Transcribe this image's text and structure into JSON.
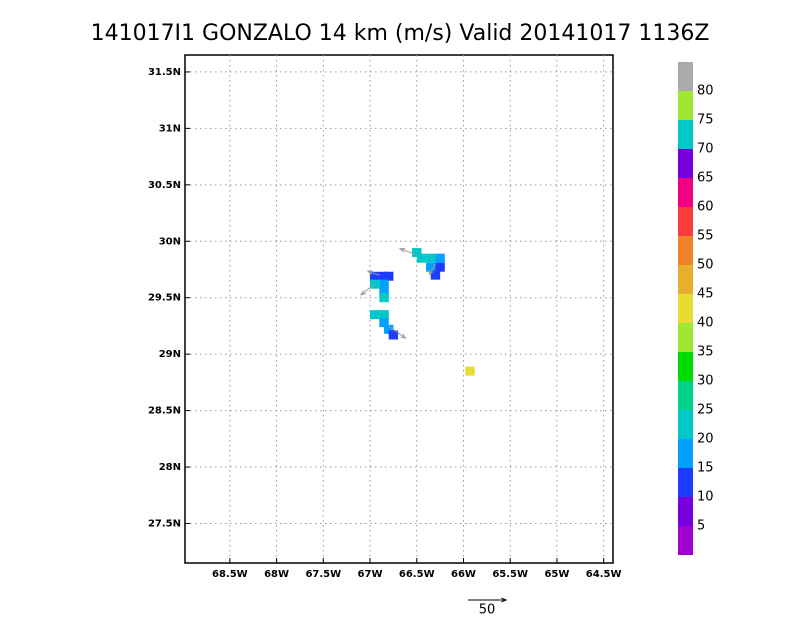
{
  "title": "141017I1 GONZALO 14 km (m/s) Valid 20141017 1136Z",
  "map": {
    "xlim": [
      -68.98,
      -64.4
    ],
    "ylim": [
      27.15,
      31.65
    ],
    "xticks": [
      {
        "value": -68.5,
        "label": "68.5W"
      },
      {
        "value": -68,
        "label": "68W"
      },
      {
        "value": -67.5,
        "label": "67.5W"
      },
      {
        "value": -67,
        "label": "67W"
      },
      {
        "value": -66.5,
        "label": "66.5W"
      },
      {
        "value": -66,
        "label": "66W"
      },
      {
        "value": -65.5,
        "label": "65.5W"
      },
      {
        "value": -65,
        "label": "65W"
      },
      {
        "value": -64.5,
        "label": "64.5W"
      }
    ],
    "yticks": [
      {
        "value": 27.5,
        "label": "27.5N"
      },
      {
        "value": 28,
        "label": "28N"
      },
      {
        "value": 28.5,
        "label": "28.5N"
      },
      {
        "value": 29,
        "label": "29N"
      },
      {
        "value": 29.5,
        "label": "29.5N"
      },
      {
        "value": 30,
        "label": "30N"
      },
      {
        "value": 30.5,
        "label": "30.5N"
      },
      {
        "value": 31,
        "label": "31N"
      },
      {
        "value": 31.5,
        "label": "31.5N"
      }
    ],
    "grid": true,
    "cells": [
      {
        "lon": -66.5,
        "lat": 29.9,
        "speed": 22
      },
      {
        "lon": -66.45,
        "lat": 29.85,
        "speed": 22
      },
      {
        "lon": -66.35,
        "lat": 29.85,
        "speed": 22
      },
      {
        "lon": -66.25,
        "lat": 29.85,
        "speed": 17
      },
      {
        "lon": -66.35,
        "lat": 29.77,
        "speed": 17
      },
      {
        "lon": -66.25,
        "lat": 29.77,
        "speed": 12
      },
      {
        "lon": -66.3,
        "lat": 29.7,
        "speed": 12
      },
      {
        "lon": -66.95,
        "lat": 29.69,
        "speed": 12
      },
      {
        "lon": -66.85,
        "lat": 29.69,
        "speed": 12
      },
      {
        "lon": -66.8,
        "lat": 29.69,
        "speed": 12
      },
      {
        "lon": -66.95,
        "lat": 29.62,
        "speed": 22
      },
      {
        "lon": -66.85,
        "lat": 29.62,
        "speed": 17
      },
      {
        "lon": -66.85,
        "lat": 29.55,
        "speed": 17
      },
      {
        "lon": -66.85,
        "lat": 29.5,
        "speed": 22
      },
      {
        "lon": -66.95,
        "lat": 29.35,
        "speed": 22
      },
      {
        "lon": -66.85,
        "lat": 29.35,
        "speed": 22
      },
      {
        "lon": -66.85,
        "lat": 29.28,
        "speed": 17
      },
      {
        "lon": -66.8,
        "lat": 29.22,
        "speed": 17
      },
      {
        "lon": -66.75,
        "lat": 29.17,
        "speed": 12
      },
      {
        "lon": -65.93,
        "lat": 28.85,
        "speed": 42
      }
    ],
    "vectors": [
      {
        "lon": -66.5,
        "lat": 29.88,
        "u": -22,
        "v": 8
      },
      {
        "lon": -66.3,
        "lat": 29.8,
        "u": -8,
        "v": -14
      },
      {
        "lon": -66.95,
        "lat": 29.62,
        "u": -18,
        "v": -14
      },
      {
        "lon": -66.9,
        "lat": 29.7,
        "u": -15,
        "v": 5
      },
      {
        "lon": -66.8,
        "lat": 29.25,
        "u": 22,
        "v": -16
      }
    ],
    "reference_vector": 50
  },
  "colorbar": {
    "levels": [
      5,
      10,
      15,
      20,
      25,
      30,
      35,
      40,
      45,
      50,
      55,
      60,
      65,
      70,
      75,
      80
    ],
    "colors": [
      "#a000d0",
      "#7800dc",
      "#1e3cff",
      "#00a0ff",
      "#00c8c8",
      "#00d28c",
      "#00dc00",
      "#a0e632",
      "#e6dc32",
      "#e6af2d",
      "#f08228",
      "#fa3c3c",
      "#f00082",
      "#7800dc",
      "#00c8c8",
      "#a0e632",
      "#aaaaaa"
    ]
  }
}
